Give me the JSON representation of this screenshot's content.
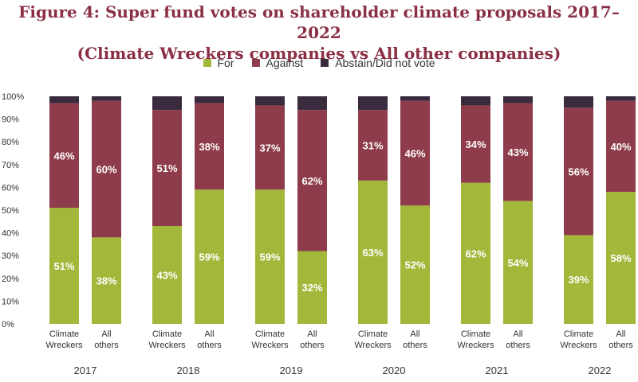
{
  "title_line1": "Figure 4:  Super fund votes on shareholder climate proposals 2017–2022",
  "title_line2": "(Climate Wreckers companies vs All other companies)",
  "legend": [
    {
      "label": "For",
      "color": "#a3b73a"
    },
    {
      "label": "Against",
      "color": "#8e3c4b"
    },
    {
      "label": "Abstain/Did not vote",
      "color": "#3a2a3e"
    }
  ],
  "chart_data": {
    "type": "bar",
    "stacked": true,
    "title": "Figure 4:  Super fund votes on shareholder climate proposals 2017–2022 (Climate Wreckers companies vs All other companies)",
    "ylim": [
      0,
      100
    ],
    "yticks": [
      "0%",
      "10%",
      "20%",
      "30%",
      "40%",
      "50%",
      "60%",
      "70%",
      "80%",
      "90%",
      "100%"
    ],
    "grid": false,
    "legend_position": "top",
    "groups": [
      "2017",
      "2018",
      "2019",
      "2020",
      "2021",
      "2022"
    ],
    "categories": [
      "Climate Wreckers",
      "All others"
    ],
    "category_lines": [
      [
        "Climate",
        "Wreckers"
      ],
      [
        "All",
        "others"
      ]
    ],
    "series": [
      {
        "name": "For",
        "color": "#a3b73a",
        "values": [
          [
            51,
            38
          ],
          [
            43,
            59
          ],
          [
            59,
            32
          ],
          [
            63,
            52
          ],
          [
            62,
            54
          ],
          [
            39,
            58
          ]
        ],
        "labels": [
          [
            "51%",
            "38%"
          ],
          [
            "43%",
            "59%"
          ],
          [
            "59%",
            "32%"
          ],
          [
            "63%",
            "52%"
          ],
          [
            "62%",
            "54%"
          ],
          [
            "39%",
            "58%"
          ]
        ]
      },
      {
        "name": "Against",
        "color": "#8e3c4b",
        "values": [
          [
            46,
            60
          ],
          [
            51,
            38
          ],
          [
            37,
            62
          ],
          [
            31,
            46
          ],
          [
            34,
            43
          ],
          [
            56,
            40
          ]
        ],
        "labels": [
          [
            "46%",
            "60%"
          ],
          [
            "51%",
            "38%"
          ],
          [
            "37%",
            "62%"
          ],
          [
            "31%",
            "46%"
          ],
          [
            "34%",
            "43%"
          ],
          [
            "56%",
            "40%"
          ]
        ]
      },
      {
        "name": "Abstain/Did not vote",
        "color": "#3a2a3e",
        "values": [
          [
            3,
            2
          ],
          [
            6,
            3
          ],
          [
            4,
            6
          ],
          [
            6,
            2
          ],
          [
            4,
            3
          ],
          [
            5,
            2
          ]
        ]
      }
    ]
  }
}
